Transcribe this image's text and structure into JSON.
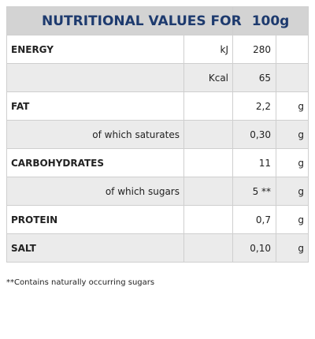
{
  "header": {
    "title": "NUTRITIONAL VALUES FOR",
    "amount": "100g"
  },
  "rows": [
    {
      "label": "ENERGY",
      "energy_unit": "kJ",
      "value": "280"
    },
    {
      "energy_unit": "Kcal",
      "value": "65"
    },
    {
      "label": "FAT",
      "value": "2,2",
      "unit": "g"
    },
    {
      "sublabel": "of which saturates",
      "value": "0,30",
      "unit": "g"
    },
    {
      "label": "CARBOHYDRATES",
      "value": "11",
      "unit": "g"
    },
    {
      "sublabel": "of which sugars",
      "value": "5 **",
      "unit": "g"
    },
    {
      "label": "PROTEIN",
      "value": "0,7",
      "unit": "g"
    },
    {
      "label": "SALT",
      "value": "0,10",
      "unit": "g"
    }
  ],
  "footnote": "**Contains naturally occurring sugars"
}
